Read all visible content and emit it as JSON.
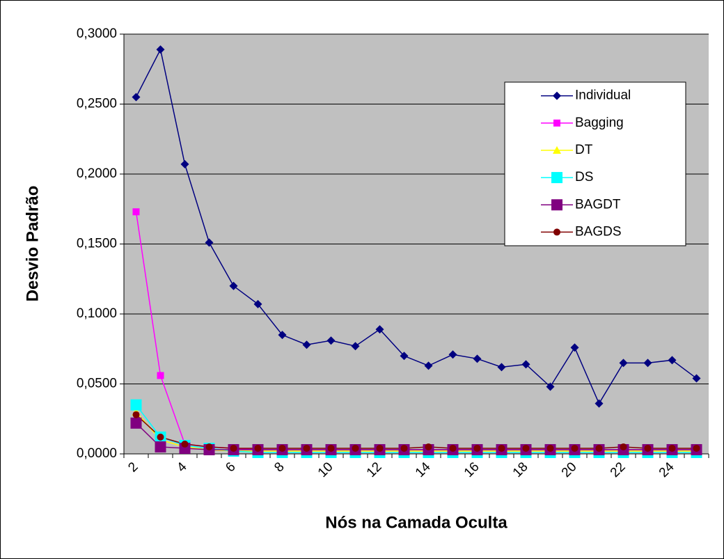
{
  "chart_data": {
    "type": "line",
    "xlabel": "Nós na Camada Oculta",
    "ylabel": "Desvio Padrão",
    "categories": [
      2,
      null,
      4,
      null,
      6,
      null,
      8,
      null,
      10,
      null,
      12,
      null,
      14,
      null,
      16,
      null,
      18,
      null,
      20,
      null,
      22,
      null,
      24,
      null
    ],
    "ylim": [
      0,
      0.3
    ],
    "yticks": [
      {
        "value": 0,
        "label": "0,0000"
      },
      {
        "value": 0.05,
        "label": "0,0500"
      },
      {
        "value": 0.1,
        "label": "0,1000"
      },
      {
        "value": 0.15,
        "label": "0,1500"
      },
      {
        "value": 0.2,
        "label": "0,2000"
      },
      {
        "value": 0.25,
        "label": "0,2500"
      },
      {
        "value": 0.3,
        "label": "0,3000"
      }
    ],
    "grid": true,
    "legend": "upper right",
    "series": [
      {
        "name": "Individual",
        "color": "#000080",
        "marker": "diamond",
        "values": [
          0.255,
          0.289,
          0.207,
          0.151,
          0.12,
          0.107,
          0.085,
          0.078,
          0.081,
          0.077,
          0.089,
          0.07,
          0.063,
          0.071,
          0.068,
          0.062,
          0.064,
          0.048,
          0.076,
          0.036,
          0.065,
          0.065,
          0.067,
          0.054
        ]
      },
      {
        "name": "Bagging",
        "color": "#ff00ff",
        "marker": "square",
        "values": [
          0.173,
          0.056,
          0.007,
          0.005,
          0.004,
          0.003,
          0.003,
          0.003,
          0.003,
          0.003,
          0.003,
          0.003,
          0.003,
          0.003,
          0.003,
          0.003,
          0.003,
          0.003,
          0.003,
          0.003,
          0.003,
          0.003,
          0.003,
          0.003
        ]
      },
      {
        "name": "DT",
        "color": "#ffff00",
        "marker": "triangle",
        "values": [
          0.03,
          0.01,
          0.005,
          0.003,
          0.002,
          0.002,
          0.002,
          0.002,
          0.002,
          0.002,
          0.002,
          0.002,
          0.002,
          0.002,
          0.002,
          0.002,
          0.002,
          0.002,
          0.002,
          0.002,
          0.002,
          0.002,
          0.002,
          0.002
        ]
      },
      {
        "name": "DS",
        "color": "#00ffff",
        "marker": "bigsquare",
        "values": [
          0.035,
          0.012,
          0.006,
          0.004,
          0.002,
          0.001,
          0.001,
          0.001,
          0.001,
          0.001,
          0.001,
          0.001,
          0.001,
          0.001,
          0.001,
          0.001,
          0.001,
          0.001,
          0.001,
          0.001,
          0.001,
          0.001,
          0.001,
          0.001
        ]
      },
      {
        "name": "BAGDT",
        "color": "#800080",
        "marker": "bigsquare",
        "values": [
          0.022,
          0.005,
          0.004,
          0.003,
          0.003,
          0.003,
          0.003,
          0.003,
          0.003,
          0.003,
          0.003,
          0.003,
          0.003,
          0.003,
          0.003,
          0.003,
          0.003,
          0.003,
          0.003,
          0.003,
          0.003,
          0.003,
          0.003,
          0.003
        ]
      },
      {
        "name": "BAGDS",
        "color": "#800000",
        "marker": "circle",
        "values": [
          0.028,
          0.012,
          0.007,
          0.005,
          0.004,
          0.004,
          0.004,
          0.004,
          0.004,
          0.004,
          0.004,
          0.004,
          0.005,
          0.004,
          0.004,
          0.004,
          0.004,
          0.004,
          0.004,
          0.004,
          0.005,
          0.004,
          0.004,
          0.004
        ]
      }
    ]
  }
}
